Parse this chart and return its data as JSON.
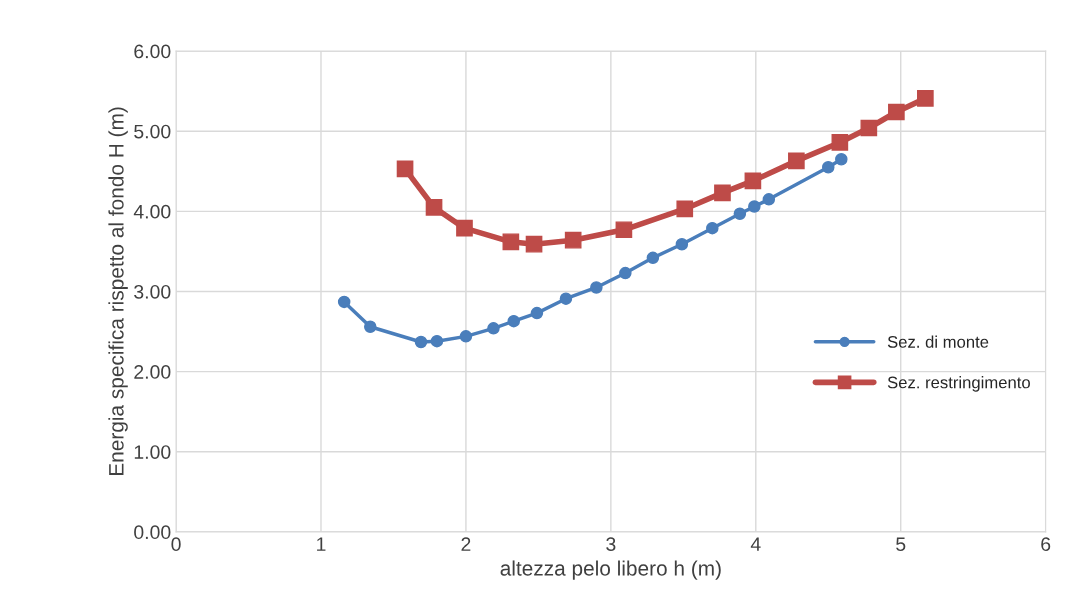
{
  "chart_data": {
    "type": "line",
    "xlabel": "altezza pelo libero h (m)",
    "ylabel": "Energia specifica rispetto al fondo H (m)",
    "xlim": [
      0,
      6
    ],
    "xticks": [
      0,
      1,
      2,
      3,
      4,
      5,
      6
    ],
    "ylim": [
      0,
      6
    ],
    "yticks": [
      {
        "value": 0,
        "label": "0.00"
      },
      {
        "value": 1,
        "label": "1.00"
      },
      {
        "value": 2,
        "label": "2.00"
      },
      {
        "value": 3,
        "label": "3.00"
      },
      {
        "value": 4,
        "label": "4.00"
      },
      {
        "value": 5,
        "label": "5.00"
      },
      {
        "value": 6,
        "label": "6.00"
      }
    ],
    "grid": true,
    "legend": "right",
    "line_style": "solid",
    "series": [
      {
        "name": "Sez. di monte",
        "color": "#4a7ebb",
        "marker": "circle",
        "x": [
          1.16,
          1.34,
          1.69,
          1.8,
          2.0,
          2.19,
          2.33,
          2.49,
          2.69,
          2.9,
          3.1,
          3.29,
          3.49,
          3.7,
          3.89,
          3.99,
          4.09,
          4.5,
          4.59
        ],
        "values": [
          2.87,
          2.56,
          2.37,
          2.38,
          2.44,
          2.54,
          2.63,
          2.73,
          2.91,
          3.05,
          3.23,
          3.42,
          3.59,
          3.79,
          3.97,
          4.06,
          4.15,
          4.55,
          4.65
        ]
      },
      {
        "name": "Sez. restringimento",
        "color": "#be4b48",
        "marker": "square",
        "x": [
          1.58,
          1.78,
          1.99,
          2.31,
          2.47,
          2.74,
          3.09,
          3.51,
          3.77,
          3.98,
          4.28,
          4.58,
          4.78,
          4.97,
          5.17
        ],
        "values": [
          4.53,
          4.05,
          3.79,
          3.62,
          3.59,
          3.64,
          3.77,
          4.03,
          4.23,
          4.38,
          4.63,
          4.86,
          5.04,
          5.24,
          5.41
        ]
      }
    ]
  }
}
